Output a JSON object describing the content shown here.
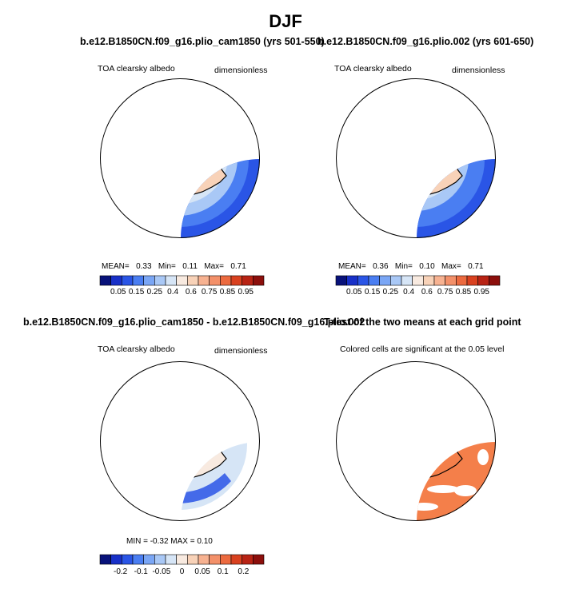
{
  "page": {
    "title": "DJF"
  },
  "panels": [
    {
      "title": "b.e12.B1850CN.f09_g16.plio_cam1850 (yrs 501-550)",
      "left_label": "TOA clearsky albedo",
      "right_label": "dimensionless",
      "stats": {
        "mean_label": "MEAN=",
        "mean": "0.33",
        "min_label": "Min=",
        "min": "0.11",
        "max_label": "Max=",
        "max": "0.71"
      }
    },
    {
      "title": "b.e12.B1850CN.f09_g16.plio.002 (yrs 601-650)",
      "left_label": "TOA clearsky albedo",
      "right_label": "dimensionless",
      "stats": {
        "mean_label": "MEAN=",
        "mean": "0.36",
        "min_label": "Min=",
        "min": "0.10",
        "max_label": "Max=",
        "max": "0.71"
      }
    },
    {
      "title": "b.e12.B1850CN.f09_g16.plio_cam1850 - b.e12.B1850CN.f09_g16.plio.002",
      "left_label": "TOA clearsky albedo",
      "right_label": "dimensionless",
      "stats_line": "MIN =   -0.32  MAX =    0.10"
    },
    {
      "title": "T-test of the two means at each grid point",
      "subtitle": "Colored cells are significant at the 0.05 level"
    }
  ],
  "colorbars": {
    "absolute": {
      "labels": [
        "0.05",
        "0.15",
        "0.25",
        "0.4",
        "0.6",
        "0.75",
        "0.85",
        "0.95"
      ],
      "colors": [
        "#08127a",
        "#1830c8",
        "#2a55e6",
        "#4a7ef2",
        "#7aa6f5",
        "#a9c8f6",
        "#d6e5f6",
        "#f8eae0",
        "#f8d2b8",
        "#f7b291",
        "#f39069",
        "#ec6a3f",
        "#d9411f",
        "#b82314",
        "#8c0f0c"
      ]
    },
    "difference": {
      "labels": [
        "-0.2",
        "-0.1",
        "-0.05",
        "0",
        "0.05",
        "0.1",
        "0.2"
      ],
      "colors": [
        "#08127a",
        "#1830c8",
        "#2a55e6",
        "#4a7ef2",
        "#7aa6f5",
        "#a9c8f6",
        "#d6e5f6",
        "#f8eae0",
        "#f8d2b8",
        "#f7b291",
        "#f39069",
        "#ec6a3f",
        "#d9411f",
        "#b82314",
        "#8c0f0c"
      ]
    }
  },
  "map_colors": {
    "ocean_deep": "#2a55e6",
    "ocean_mid": "#4a7ef2",
    "sea_ice": "#a9c8f6",
    "ice_edge": "#d6e5f6",
    "land": "#f8d2b8",
    "land_high": "#f7b291",
    "diff_neutral": "#d6e5f6",
    "diff_neg": "#2a55e6",
    "diff_land": "#f8eae0",
    "sig": "#f47f4a"
  }
}
